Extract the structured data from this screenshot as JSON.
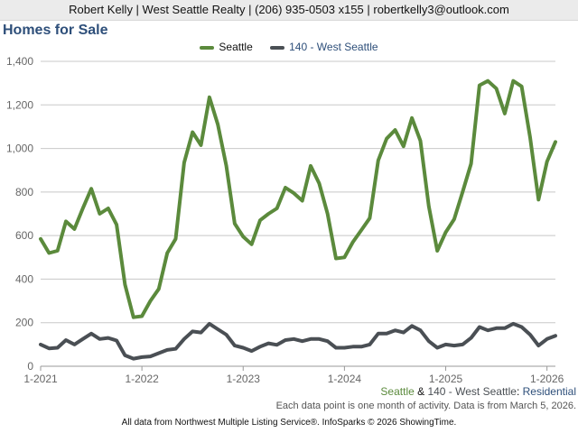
{
  "banner": "Robert Kelly | West Seattle Realty | (206) 935-0503 x155 | robertkelly3@outlook.com",
  "footer": {
    "series_a": "Seattle",
    "amp": " & ",
    "series_b": "140 - West Seattle",
    "colon": ": ",
    "property_type": "Residential",
    "note": "Each data point is one month of activity. Data is from March 5, 2026.",
    "source": "All data from Northwest Multiple Listing Service®. InfoSparks © 2026 ShowingTime."
  },
  "chart_data": {
    "type": "line",
    "title": "Homes for Sale",
    "ylim": [
      0,
      1400
    ],
    "yticks": [
      0,
      200,
      400,
      600,
      800,
      1000,
      1200,
      1400
    ],
    "ytick_labels": [
      "0",
      "200",
      "400",
      "600",
      "800",
      "1,000",
      "1,200",
      "1,400"
    ],
    "xticks": [
      {
        "index": 0,
        "label": "1-2021"
      },
      {
        "index": 12,
        "label": "1-2022"
      },
      {
        "index": 24,
        "label": "1-2023"
      },
      {
        "index": 36,
        "label": "1-2024"
      },
      {
        "index": 48,
        "label": "1-2025"
      },
      {
        "index": 60,
        "label": "1-2026"
      }
    ],
    "x": [
      "2021-01",
      "2021-02",
      "2021-03",
      "2021-04",
      "2021-05",
      "2021-06",
      "2021-07",
      "2021-08",
      "2021-09",
      "2021-10",
      "2021-11",
      "2021-12",
      "2022-01",
      "2022-02",
      "2022-03",
      "2022-04",
      "2022-05",
      "2022-06",
      "2022-07",
      "2022-08",
      "2022-09",
      "2022-10",
      "2022-11",
      "2022-12",
      "2023-01",
      "2023-02",
      "2023-03",
      "2023-04",
      "2023-05",
      "2023-06",
      "2023-07",
      "2023-08",
      "2023-09",
      "2023-10",
      "2023-11",
      "2023-12",
      "2024-01",
      "2024-02",
      "2024-03",
      "2024-04",
      "2024-05",
      "2024-06",
      "2024-07",
      "2024-08",
      "2024-09",
      "2024-10",
      "2024-11",
      "2024-12",
      "2025-01",
      "2025-02",
      "2025-03",
      "2025-04",
      "2025-05",
      "2025-06",
      "2025-07",
      "2025-08",
      "2025-09",
      "2025-10",
      "2025-11",
      "2025-12",
      "2026-01",
      "2026-02"
    ],
    "series": [
      {
        "name": "Seattle",
        "color": "#5b8a3c",
        "values": [
          585,
          520,
          530,
          665,
          630,
          725,
          815,
          700,
          725,
          650,
          375,
          225,
          230,
          300,
          355,
          520,
          585,
          935,
          1075,
          1015,
          1235,
          1110,
          920,
          655,
          595,
          560,
          670,
          700,
          725,
          820,
          795,
          760,
          920,
          840,
          700,
          495,
          500,
          570,
          625,
          680,
          945,
          1045,
          1085,
          1010,
          1140,
          1035,
          735,
          530,
          615,
          675,
          800,
          930,
          1290,
          1310,
          1275,
          1160,
          1310,
          1285,
          1050,
          765,
          940,
          1030
        ]
      },
      {
        "name": "140 - West Seattle",
        "color": "#4a4f54",
        "values": [
          100,
          82,
          85,
          120,
          100,
          125,
          150,
          125,
          130,
          118,
          50,
          35,
          42,
          45,
          60,
          75,
          80,
          125,
          160,
          155,
          195,
          170,
          145,
          95,
          85,
          70,
          90,
          105,
          98,
          120,
          125,
          115,
          125,
          125,
          115,
          85,
          85,
          90,
          90,
          100,
          150,
          150,
          165,
          155,
          185,
          165,
          115,
          85,
          100,
          95,
          100,
          130,
          180,
          165,
          175,
          175,
          195,
          180,
          145,
          95,
          125,
          140
        ]
      }
    ]
  }
}
